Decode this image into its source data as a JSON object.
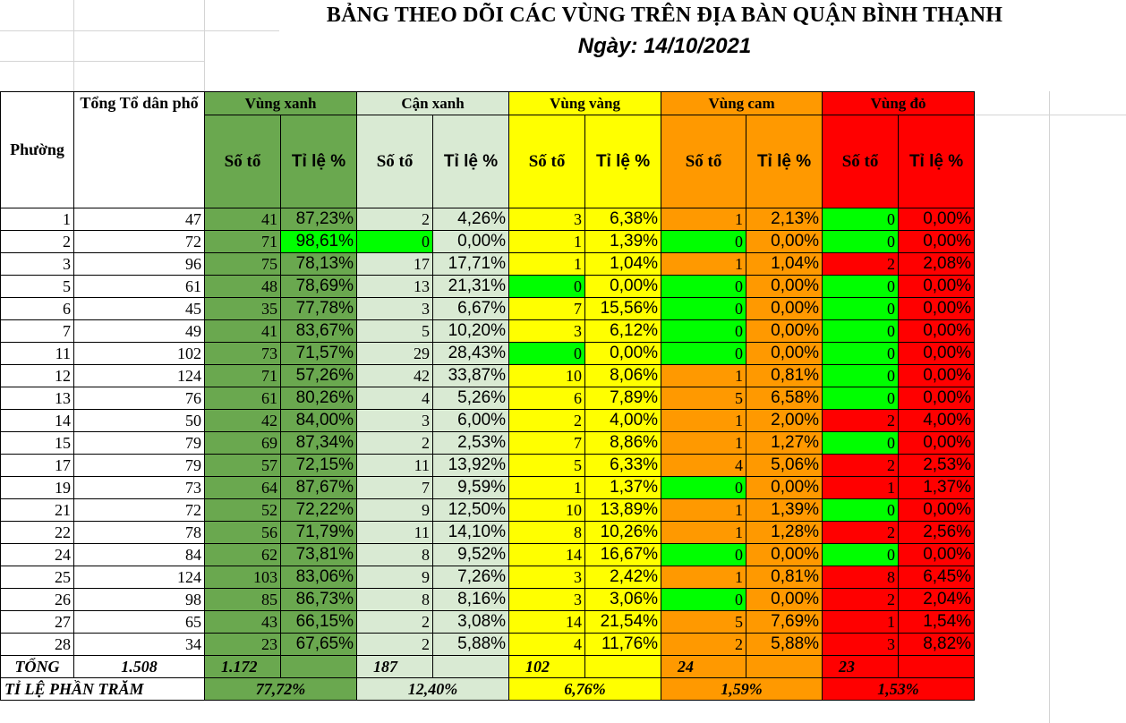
{
  "title": "BẢNG THEO DÕI CÁC VÙNG TRÊN ĐỊA BÀN QUẬN BÌNH THẠNH",
  "date_line": "Ngày:  14/10/2021",
  "headers": {
    "ward": "Phường",
    "total": "Tổng Tổ dân phố",
    "groups": [
      "Vùng xanh",
      "Cận xanh",
      "Vùng vàng",
      "Vùng cam",
      "Vùng đỏ"
    ],
    "count": "Số tổ",
    "ratio": "Tỉ lệ %"
  },
  "colors": {
    "vung_xanh": "#6aa84f",
    "can_xanh": "#d9ead3",
    "vung_vang": "#ffff00",
    "vung_cam": "#ff9900",
    "vung_do": "#ff0000",
    "highlight_green": "#00ff00"
  },
  "rows": [
    {
      "ward": "1",
      "total": "47",
      "xanh": [
        "41",
        "87,23%"
      ],
      "can": [
        "2",
        "4,26%"
      ],
      "vang": [
        "3",
        "6,38%"
      ],
      "cam": [
        "1",
        "2,13%"
      ],
      "do": [
        "0",
        "0,00%"
      ]
    },
    {
      "ward": "2",
      "total": "72",
      "xanh": [
        "71",
        "98,61%"
      ],
      "can": [
        "0",
        "0,00%"
      ],
      "vang": [
        "1",
        "1,39%"
      ],
      "cam": [
        "0",
        "0,00%"
      ],
      "do": [
        "0",
        "0,00%"
      ]
    },
    {
      "ward": "3",
      "total": "96",
      "xanh": [
        "75",
        "78,13%"
      ],
      "can": [
        "17",
        "17,71%"
      ],
      "vang": [
        "1",
        "1,04%"
      ],
      "cam": [
        "1",
        "1,04%"
      ],
      "do": [
        "2",
        "2,08%"
      ]
    },
    {
      "ward": "5",
      "total": "61",
      "xanh": [
        "48",
        "78,69%"
      ],
      "can": [
        "13",
        "21,31%"
      ],
      "vang": [
        "0",
        "0,00%"
      ],
      "cam": [
        "0",
        "0,00%"
      ],
      "do": [
        "0",
        "0,00%"
      ]
    },
    {
      "ward": "6",
      "total": "45",
      "xanh": [
        "35",
        "77,78%"
      ],
      "can": [
        "3",
        "6,67%"
      ],
      "vang": [
        "7",
        "15,56%"
      ],
      "cam": [
        "0",
        "0,00%"
      ],
      "do": [
        "0",
        "0,00%"
      ]
    },
    {
      "ward": "7",
      "total": "49",
      "xanh": [
        "41",
        "83,67%"
      ],
      "can": [
        "5",
        "10,20%"
      ],
      "vang": [
        "3",
        "6,12%"
      ],
      "cam": [
        "0",
        "0,00%"
      ],
      "do": [
        "0",
        "0,00%"
      ]
    },
    {
      "ward": "11",
      "total": "102",
      "xanh": [
        "73",
        "71,57%"
      ],
      "can": [
        "29",
        "28,43%"
      ],
      "vang": [
        "0",
        "0,00%"
      ],
      "cam": [
        "0",
        "0,00%"
      ],
      "do": [
        "0",
        "0,00%"
      ]
    },
    {
      "ward": "12",
      "total": "124",
      "xanh": [
        "71",
        "57,26%"
      ],
      "can": [
        "42",
        "33,87%"
      ],
      "vang": [
        "10",
        "8,06%"
      ],
      "cam": [
        "1",
        "0,81%"
      ],
      "do": [
        "0",
        "0,00%"
      ]
    },
    {
      "ward": "13",
      "total": "76",
      "xanh": [
        "61",
        "80,26%"
      ],
      "can": [
        "4",
        "5,26%"
      ],
      "vang": [
        "6",
        "7,89%"
      ],
      "cam": [
        "5",
        "6,58%"
      ],
      "do": [
        "0",
        "0,00%"
      ]
    },
    {
      "ward": "14",
      "total": "50",
      "xanh": [
        "42",
        "84,00%"
      ],
      "can": [
        "3",
        "6,00%"
      ],
      "vang": [
        "2",
        "4,00%"
      ],
      "cam": [
        "1",
        "2,00%"
      ],
      "do": [
        "2",
        "4,00%"
      ]
    },
    {
      "ward": "15",
      "total": "79",
      "xanh": [
        "69",
        "87,34%"
      ],
      "can": [
        "2",
        "2,53%"
      ],
      "vang": [
        "7",
        "8,86%"
      ],
      "cam": [
        "1",
        "1,27%"
      ],
      "do": [
        "0",
        "0,00%"
      ]
    },
    {
      "ward": "17",
      "total": "79",
      "xanh": [
        "57",
        "72,15%"
      ],
      "can": [
        "11",
        "13,92%"
      ],
      "vang": [
        "5",
        "6,33%"
      ],
      "cam": [
        "4",
        "5,06%"
      ],
      "do": [
        "2",
        "2,53%"
      ]
    },
    {
      "ward": "19",
      "total": "73",
      "xanh": [
        "64",
        "87,67%"
      ],
      "can": [
        "7",
        "9,59%"
      ],
      "vang": [
        "1",
        "1,37%"
      ],
      "cam": [
        "0",
        "0,00%"
      ],
      "do": [
        "1",
        "1,37%"
      ]
    },
    {
      "ward": "21",
      "total": "72",
      "xanh": [
        "52",
        "72,22%"
      ],
      "can": [
        "9",
        "12,50%"
      ],
      "vang": [
        "10",
        "13,89%"
      ],
      "cam": [
        "1",
        "1,39%"
      ],
      "do": [
        "0",
        "0,00%"
      ]
    },
    {
      "ward": "22",
      "total": "78",
      "xanh": [
        "56",
        "71,79%"
      ],
      "can": [
        "11",
        "14,10%"
      ],
      "vang": [
        "8",
        "10,26%"
      ],
      "cam": [
        "1",
        "1,28%"
      ],
      "do": [
        "2",
        "2,56%"
      ]
    },
    {
      "ward": "24",
      "total": "84",
      "xanh": [
        "62",
        "73,81%"
      ],
      "can": [
        "8",
        "9,52%"
      ],
      "vang": [
        "14",
        "16,67%"
      ],
      "cam": [
        "0",
        "0,00%"
      ],
      "do": [
        "0",
        "0,00%"
      ]
    },
    {
      "ward": "25",
      "total": "124",
      "xanh": [
        "103",
        "83,06%"
      ],
      "can": [
        "9",
        "7,26%"
      ],
      "vang": [
        "3",
        "2,42%"
      ],
      "cam": [
        "1",
        "0,81%"
      ],
      "do": [
        "8",
        "6,45%"
      ]
    },
    {
      "ward": "26",
      "total": "98",
      "xanh": [
        "85",
        "86,73%"
      ],
      "can": [
        "8",
        "8,16%"
      ],
      "vang": [
        "3",
        "3,06%"
      ],
      "cam": [
        "0",
        "0,00%"
      ],
      "do": [
        "2",
        "2,04%"
      ]
    },
    {
      "ward": "27",
      "total": "65",
      "xanh": [
        "43",
        "66,15%"
      ],
      "can": [
        "2",
        "3,08%"
      ],
      "vang": [
        "14",
        "21,54%"
      ],
      "cam": [
        "5",
        "7,69%"
      ],
      "do": [
        "1",
        "1,54%"
      ]
    },
    {
      "ward": "28",
      "total": "34",
      "xanh": [
        "23",
        "67,65%"
      ],
      "can": [
        "2",
        "5,88%"
      ],
      "vang": [
        "4",
        "11,76%"
      ],
      "cam": [
        "2",
        "5,88%"
      ],
      "do": [
        "3",
        "8,82%"
      ]
    }
  ],
  "totals": {
    "label": "TỔNG",
    "total": "1.508",
    "xanh": "1.172",
    "can": "187",
    "vang": "102",
    "cam": "24",
    "do": "23"
  },
  "percent": {
    "label": "TỈ LỆ PHẦN TRĂM",
    "xanh": "77,72%",
    "can": "12,40%",
    "vang": "6,76%",
    "cam": "1,59%",
    "do": "1,53%"
  }
}
